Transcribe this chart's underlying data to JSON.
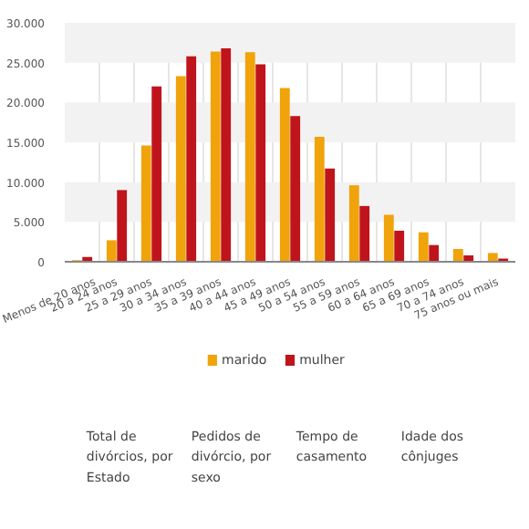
{
  "chart_data": {
    "type": "bar",
    "categories": [
      "Menos de 20 anos",
      "20 a 24 anos",
      "25 a 29 anos",
      "30 a 34 anos",
      "35 a 39 anos",
      "40 a 44 anos",
      "45 a 49 anos",
      "50 a 54 anos",
      "55 a 59 anos",
      "60 a 64 anos",
      "65 a 69 anos",
      "70 a 74 anos",
      "75 anos ou mais"
    ],
    "series": [
      {
        "name": "marido",
        "color": "#f0a30a",
        "values": [
          200,
          2700,
          14600,
          23300,
          26400,
          26300,
          21800,
          15700,
          9600,
          5900,
          3700,
          1600,
          1100
        ]
      },
      {
        "name": "mulher",
        "color": "#c0141c",
        "values": [
          600,
          9000,
          22000,
          25800,
          26800,
          24800,
          18300,
          11700,
          7000,
          3900,
          2100,
          800,
          400
        ]
      }
    ],
    "ylim": [
      0,
      30000
    ],
    "yticks": [
      0,
      {
        "value": 5000,
        "label": "5.000"
      },
      {
        "value": 10000,
        "label": "10.000"
      },
      {
        "value": 15000,
        "label": "15.000"
      },
      {
        "value": 20000,
        "label": "20.000"
      },
      {
        "value": 25000,
        "label": "25.000"
      },
      {
        "value": 30000,
        "label": "30.000"
      }
    ],
    "grid": true,
    "legend": "bottom",
    "annotations": [
      "Total de divórcios, por Estado",
      "Pedidos de divórcio, por sexo",
      "Tempo de casamento",
      "Idade dos cônjuges"
    ]
  }
}
